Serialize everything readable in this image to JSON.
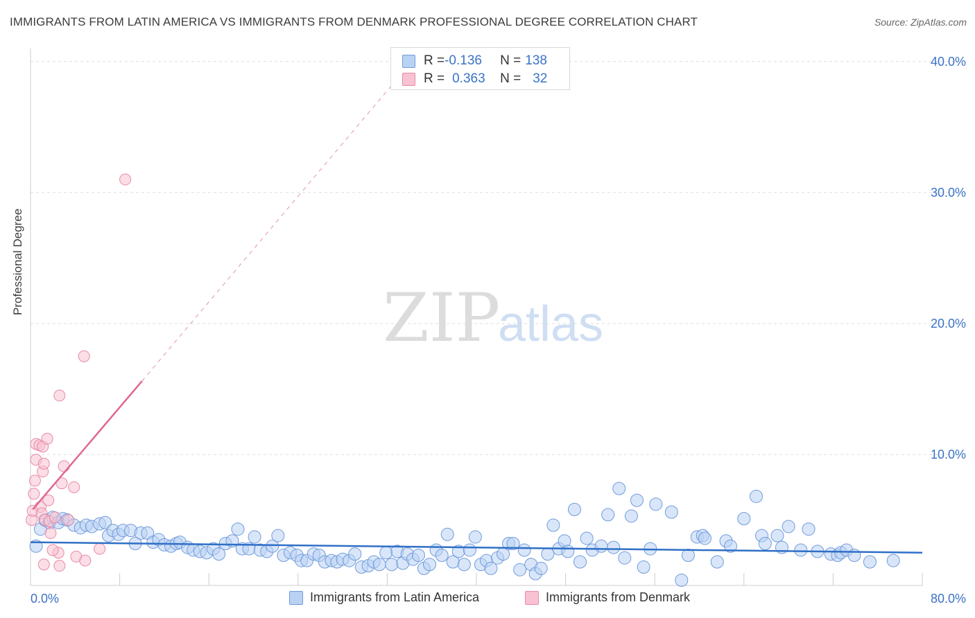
{
  "title": "IMMIGRANTS FROM LATIN AMERICA VS IMMIGRANTS FROM DENMARK PROFESSIONAL DEGREE CORRELATION CHART",
  "source": "Source: ZipAtlas.com",
  "watermark": {
    "zip": "ZIP",
    "atlas": "atlas"
  },
  "colors": {
    "blue_fill": "#b9d2f4",
    "blue_stroke": "#6f9bdb",
    "blue_line": "#2f6fc6",
    "pink_fill": "#f8c2d2",
    "pink_stroke": "#e88aa8",
    "pink_line": "#e06690",
    "tick_label": "#3a72c7",
    "grid": "#dcdcdc"
  },
  "legend": {
    "rows": [
      {
        "r_label": "R = ",
        "r_value": "-0.136",
        "n_label": "N = ",
        "n_value": "138"
      },
      {
        "r_label": "R = ",
        "r_value": "0.363",
        "n_label": "N = ",
        "n_value": "32"
      }
    ]
  },
  "chart_data": {
    "type": "scatter",
    "title": "IMMIGRANTS FROM LATIN AMERICA VS IMMIGRANTS FROM DENMARK PROFESSIONAL DEGREE CORRELATION CHART",
    "xlabel": "",
    "ylabel": "Professional Degree",
    "xlim": [
      0,
      80
    ],
    "ylim": [
      0,
      41
    ],
    "x_tick_labels": [
      "0.0%",
      "80.0%"
    ],
    "y_ticks": [
      10,
      20,
      30,
      40
    ],
    "y_tick_labels": [
      "10.0%",
      "20.0%",
      "30.0%",
      "40.0%"
    ],
    "grid": true,
    "legend_position": "top-center",
    "series": [
      {
        "name": "Immigrants from Latin America",
        "r": -0.136,
        "n": 138,
        "trend": {
          "x0": 0,
          "y0": 3.3,
          "x1": 80,
          "y1": 2.5
        },
        "points": [
          [
            0.5,
            3.0
          ],
          [
            0.9,
            4.3
          ],
          [
            1.3,
            5.0
          ],
          [
            1.7,
            4.8
          ],
          [
            2.0,
            5.2
          ],
          [
            2.5,
            4.8
          ],
          [
            2.9,
            5.1
          ],
          [
            3.3,
            5.0
          ],
          [
            3.9,
            4.6
          ],
          [
            4.5,
            4.4
          ],
          [
            5.0,
            4.6
          ],
          [
            5.5,
            4.5
          ],
          [
            6.2,
            4.7
          ],
          [
            6.7,
            4.8
          ],
          [
            7.0,
            3.8
          ],
          [
            7.4,
            4.2
          ],
          [
            7.9,
            3.9
          ],
          [
            8.3,
            4.2
          ],
          [
            9.0,
            4.2
          ],
          [
            9.4,
            3.2
          ],
          [
            9.9,
            4.0
          ],
          [
            10.5,
            4.0
          ],
          [
            11.0,
            3.3
          ],
          [
            11.5,
            3.5
          ],
          [
            12.0,
            3.1
          ],
          [
            12.6,
            3.0
          ],
          [
            13.1,
            3.2
          ],
          [
            13.4,
            3.3
          ],
          [
            14.1,
            2.9
          ],
          [
            14.6,
            2.7
          ],
          [
            15.2,
            2.6
          ],
          [
            15.8,
            2.5
          ],
          [
            16.4,
            2.8
          ],
          [
            16.9,
            2.4
          ],
          [
            17.5,
            3.2
          ],
          [
            18.1,
            3.4
          ],
          [
            18.6,
            4.3
          ],
          [
            19.0,
            2.8
          ],
          [
            19.6,
            2.8
          ],
          [
            20.1,
            3.7
          ],
          [
            20.6,
            2.7
          ],
          [
            21.2,
            2.6
          ],
          [
            21.7,
            3.0
          ],
          [
            22.2,
            3.8
          ],
          [
            22.7,
            2.3
          ],
          [
            23.3,
            2.5
          ],
          [
            23.9,
            2.3
          ],
          [
            24.3,
            1.9
          ],
          [
            24.8,
            1.9
          ],
          [
            25.4,
            2.4
          ],
          [
            25.9,
            2.3
          ],
          [
            26.4,
            1.8
          ],
          [
            27.0,
            1.9
          ],
          [
            27.5,
            1.8
          ],
          [
            28.0,
            2.0
          ],
          [
            28.6,
            1.9
          ],
          [
            29.1,
            2.4
          ],
          [
            29.7,
            1.4
          ],
          [
            30.3,
            1.5
          ],
          [
            30.8,
            1.8
          ],
          [
            31.3,
            1.6
          ],
          [
            31.9,
            2.5
          ],
          [
            32.4,
            1.6
          ],
          [
            32.9,
            2.6
          ],
          [
            33.4,
            1.7
          ],
          [
            33.8,
            2.4
          ],
          [
            34.3,
            2.0
          ],
          [
            34.8,
            2.3
          ],
          [
            35.3,
            1.3
          ],
          [
            35.8,
            1.6
          ],
          [
            36.4,
            2.7
          ],
          [
            36.9,
            2.3
          ],
          [
            37.4,
            3.9
          ],
          [
            37.9,
            1.8
          ],
          [
            38.4,
            2.6
          ],
          [
            38.9,
            1.6
          ],
          [
            39.4,
            2.7
          ],
          [
            39.9,
            3.7
          ],
          [
            40.4,
            1.6
          ],
          [
            40.9,
            1.9
          ],
          [
            41.3,
            1.3
          ],
          [
            41.9,
            2.1
          ],
          [
            42.4,
            2.4
          ],
          [
            42.9,
            3.2
          ],
          [
            43.3,
            3.2
          ],
          [
            43.9,
            1.2
          ],
          [
            44.3,
            2.7
          ],
          [
            44.9,
            1.6
          ],
          [
            45.3,
            0.9
          ],
          [
            45.8,
            1.3
          ],
          [
            46.4,
            2.4
          ],
          [
            46.9,
            4.6
          ],
          [
            47.4,
            2.8
          ],
          [
            47.9,
            3.4
          ],
          [
            48.2,
            2.6
          ],
          [
            48.8,
            5.8
          ],
          [
            49.3,
            1.8
          ],
          [
            49.9,
            3.6
          ],
          [
            50.4,
            2.7
          ],
          [
            51.2,
            3.0
          ],
          [
            51.8,
            5.4
          ],
          [
            52.3,
            2.9
          ],
          [
            52.8,
            7.4
          ],
          [
            53.3,
            2.1
          ],
          [
            53.9,
            5.3
          ],
          [
            54.4,
            6.5
          ],
          [
            55.0,
            1.4
          ],
          [
            55.6,
            2.8
          ],
          [
            56.1,
            6.2
          ],
          [
            57.5,
            5.6
          ],
          [
            58.4,
            0.4
          ],
          [
            59.0,
            2.3
          ],
          [
            59.8,
            3.7
          ],
          [
            60.3,
            3.8
          ],
          [
            60.5,
            3.6
          ],
          [
            61.6,
            1.8
          ],
          [
            62.4,
            3.4
          ],
          [
            62.8,
            3.0
          ],
          [
            64.0,
            5.1
          ],
          [
            65.1,
            6.8
          ],
          [
            65.6,
            3.8
          ],
          [
            65.9,
            3.2
          ],
          [
            67.0,
            3.8
          ],
          [
            67.4,
            2.9
          ],
          [
            68.0,
            4.5
          ],
          [
            69.1,
            2.7
          ],
          [
            69.8,
            4.3
          ],
          [
            70.6,
            2.6
          ],
          [
            71.8,
            2.4
          ],
          [
            72.4,
            2.3
          ],
          [
            72.7,
            2.5
          ],
          [
            73.2,
            2.7
          ],
          [
            73.9,
            2.3
          ],
          [
            75.3,
            1.8
          ],
          [
            77.4,
            1.9
          ]
        ]
      },
      {
        "name": "Immigrants from Denmark",
        "r": 0.363,
        "n": 32,
        "trend": {
          "x0": 0.2,
          "y0": 5.8,
          "x1": 10.0,
          "y1": 15.6
        },
        "trend_dashed_extension": {
          "x0": 10.0,
          "y0": 15.6,
          "x1": 34.5,
          "y1": 40.3
        },
        "points": [
          [
            0.1,
            5.0
          ],
          [
            0.2,
            5.7
          ],
          [
            0.3,
            7.0
          ],
          [
            0.4,
            8.0
          ],
          [
            0.5,
            9.6
          ],
          [
            0.5,
            10.8
          ],
          [
            0.8,
            10.7
          ],
          [
            0.9,
            6.0
          ],
          [
            1.0,
            5.5
          ],
          [
            1.1,
            8.7
          ],
          [
            1.1,
            10.6
          ],
          [
            1.2,
            9.3
          ],
          [
            1.3,
            5.0
          ],
          [
            1.5,
            11.2
          ],
          [
            1.6,
            6.5
          ],
          [
            1.7,
            4.9
          ],
          [
            1.8,
            4.0
          ],
          [
            2.2,
            5.2
          ],
          [
            2.5,
            2.5
          ],
          [
            2.6,
            14.5
          ],
          [
            2.8,
            7.8
          ],
          [
            3.0,
            9.1
          ],
          [
            3.4,
            5.0
          ],
          [
            3.9,
            7.5
          ],
          [
            4.1,
            2.2
          ],
          [
            4.8,
            17.5
          ],
          [
            6.2,
            2.8
          ],
          [
            8.5,
            31.0
          ],
          [
            1.2,
            1.6
          ],
          [
            2.0,
            2.7
          ],
          [
            2.6,
            1.5
          ],
          [
            4.9,
            1.9
          ]
        ]
      }
    ]
  },
  "bottom_legend": [
    {
      "label": "Immigrants from Latin America"
    },
    {
      "label": "Immigrants from Denmark"
    }
  ]
}
